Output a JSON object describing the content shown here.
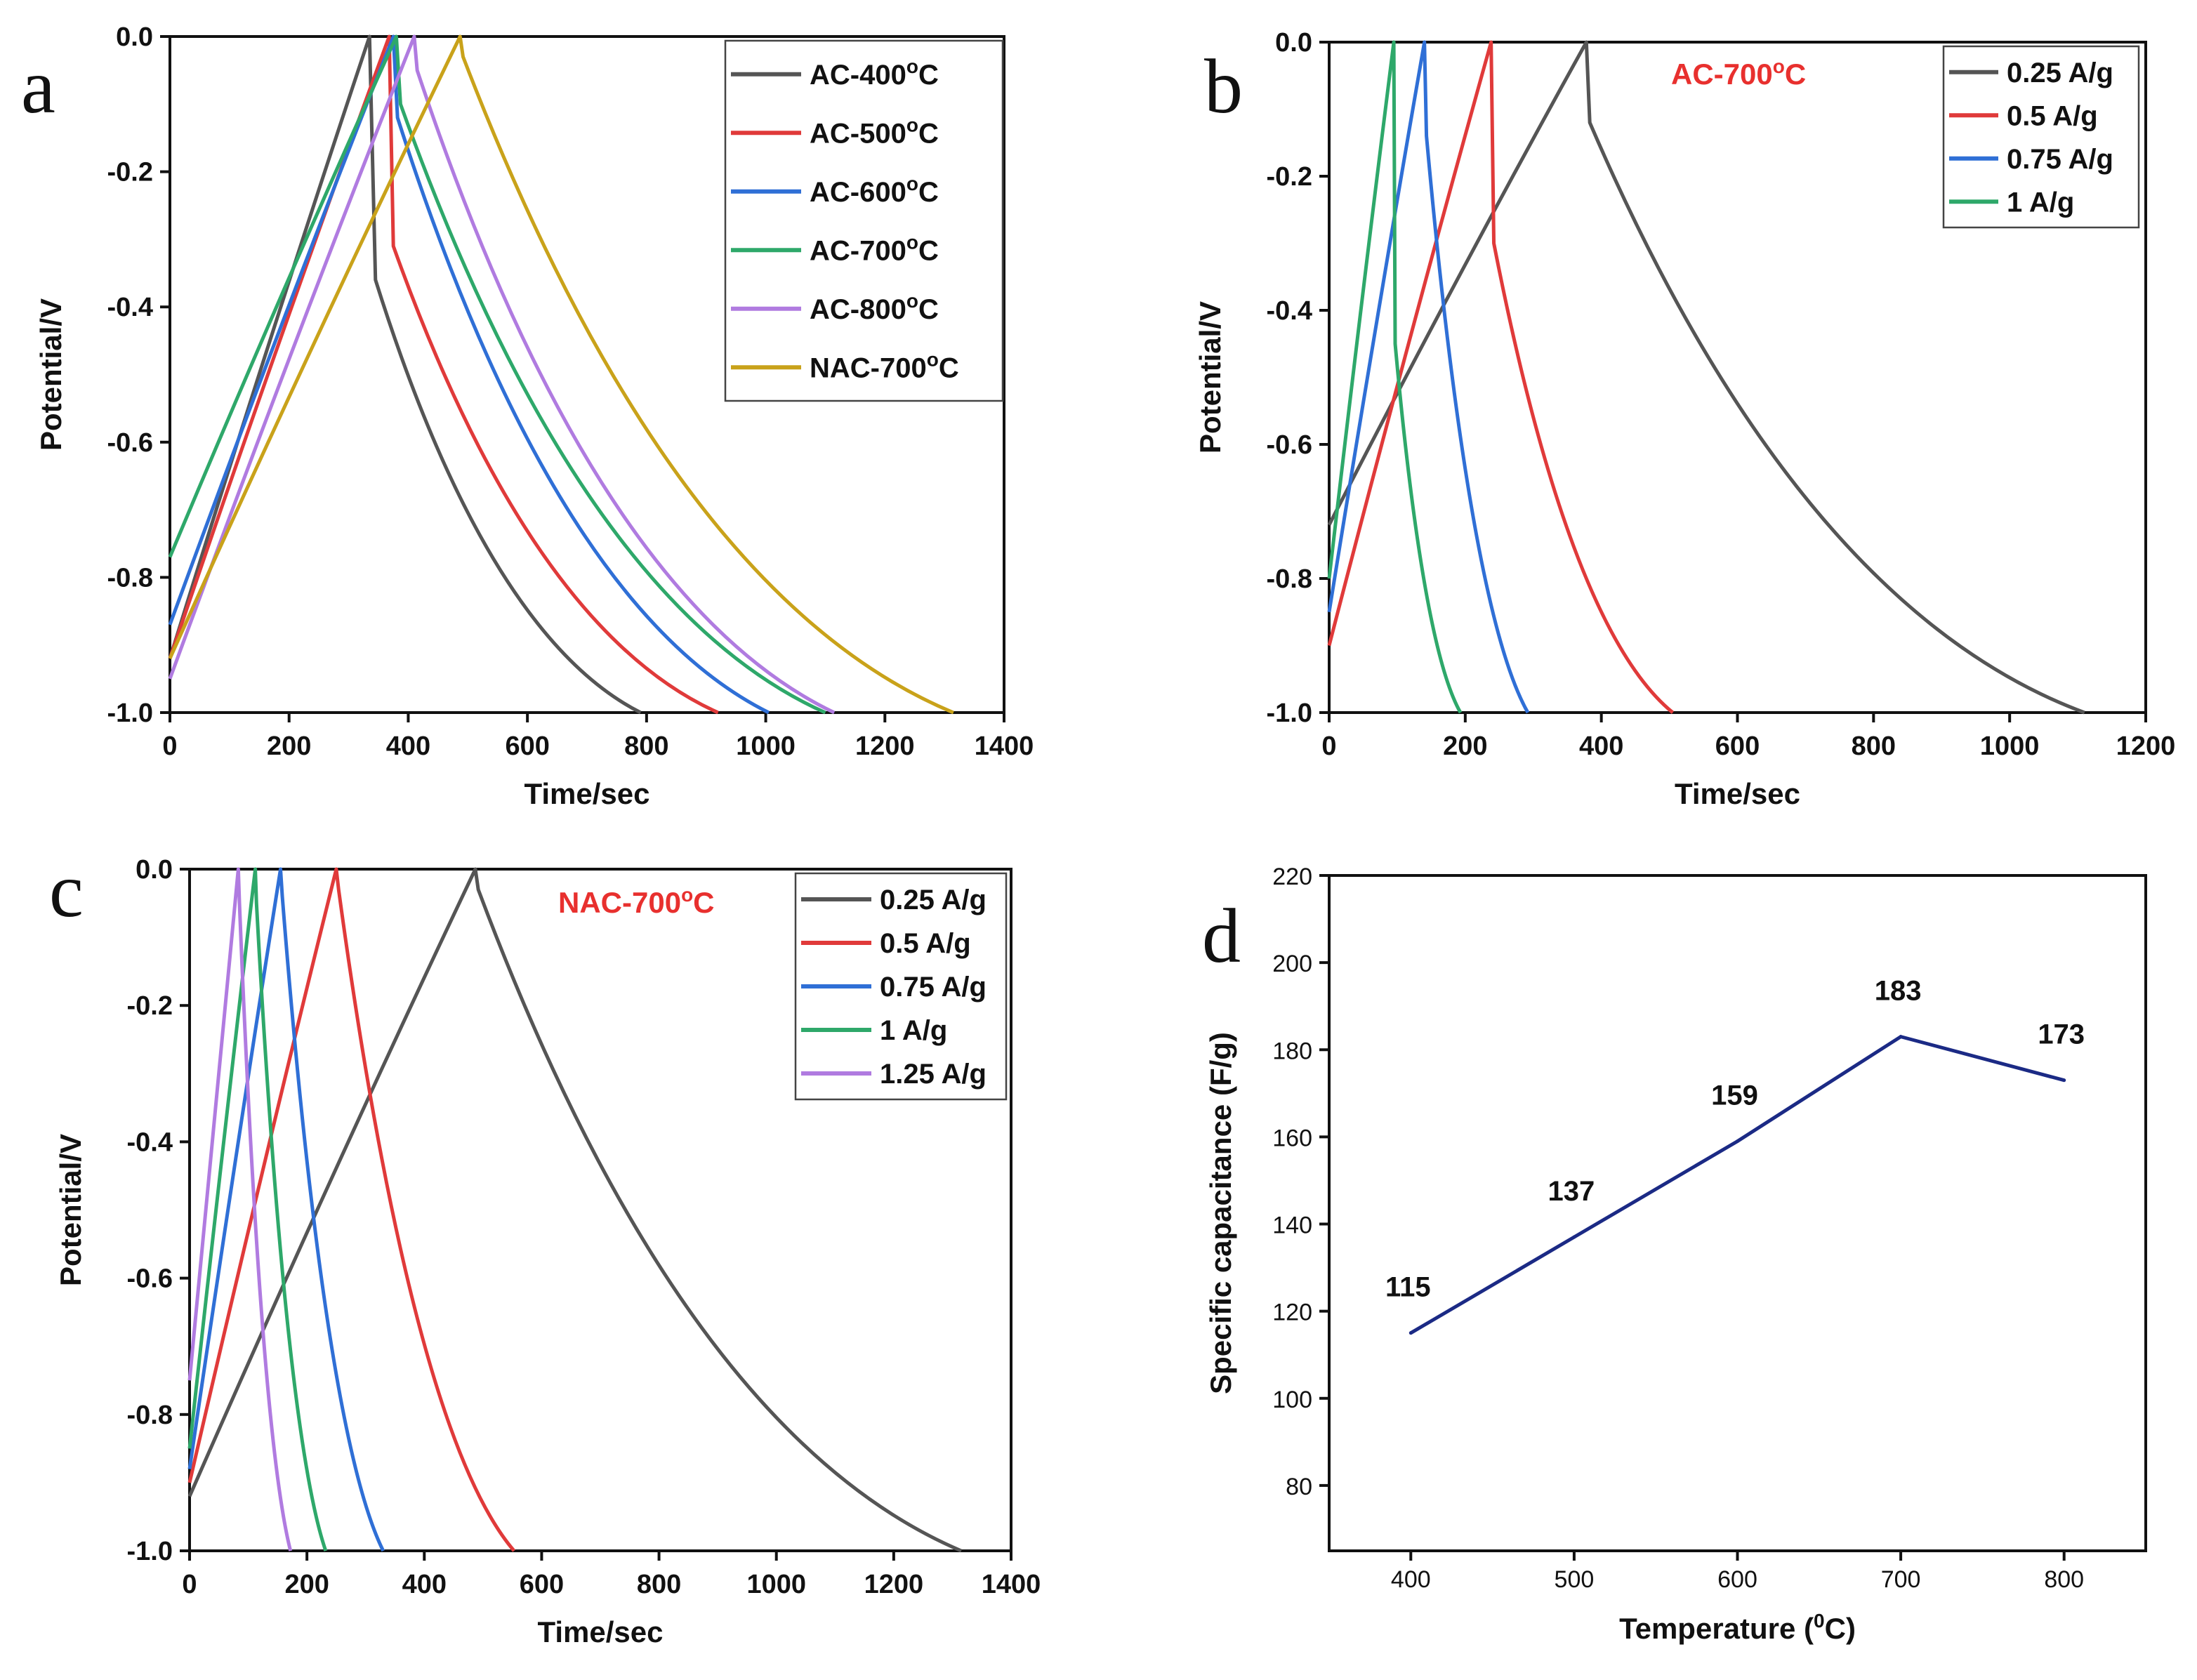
{
  "chart_data": [
    {
      "panel": "a",
      "type": "line",
      "xlabel": "Time/sec",
      "ylabel": "Potential/V",
      "xlim": [
        0,
        1400
      ],
      "ylim": [
        -1.0,
        0.0
      ],
      "xticks": [
        0,
        200,
        400,
        600,
        800,
        1000,
        1200,
        1400
      ],
      "yticks": [
        0.0,
        -0.2,
        -0.4,
        -0.6,
        -0.8,
        -1.0
      ],
      "legend_position": "top-right",
      "series": [
        {
          "name": "AC-400",
          "suffix": "C",
          "color": "#555555",
          "start": [
            0,
            -0.92
          ],
          "peak": [
            335,
            0.0
          ],
          "drop": [
            345,
            -0.36
          ],
          "end": [
            790,
            -1.0
          ]
        },
        {
          "name": "AC-500",
          "suffix": "C",
          "color": "#e03a3a",
          "start": [
            0,
            -0.92
          ],
          "peak": [
            368,
            0.0
          ],
          "drop": [
            375,
            -0.31
          ],
          "end": [
            920,
            -1.0
          ]
        },
        {
          "name": "AC-600",
          "suffix": "C",
          "color": "#2f6fd6",
          "start": [
            0,
            -0.87
          ],
          "peak": [
            375,
            0.0
          ],
          "drop": [
            382,
            -0.12
          ],
          "end": [
            1005,
            -1.0
          ]
        },
        {
          "name": "AC-700",
          "suffix": "C",
          "color": "#2ea86a",
          "start": [
            0,
            -0.77
          ],
          "peak": [
            380,
            0.0
          ],
          "drop": [
            387,
            -0.1
          ],
          "end": [
            1100,
            -1.0
          ]
        },
        {
          "name": "AC-800",
          "suffix": "C",
          "color": "#b07be0",
          "start": [
            0,
            -0.95
          ],
          "peak": [
            410,
            0.0
          ],
          "drop": [
            415,
            -0.05
          ],
          "end": [
            1115,
            -1.0
          ]
        },
        {
          "name": "NAC-700",
          "suffix": "C",
          "color": "#c9a21a",
          "start": [
            0,
            -0.92
          ],
          "peak": [
            487,
            0.0
          ],
          "drop": [
            492,
            -0.03
          ],
          "end": [
            1315,
            -1.0
          ]
        }
      ]
    },
    {
      "panel": "b",
      "type": "line",
      "annotation": "AC-700",
      "annotation_suffix": "C",
      "xlabel": "Time/sec",
      "ylabel": "Potential/V",
      "xlim": [
        0,
        1200
      ],
      "ylim": [
        -1.0,
        0.0
      ],
      "xticks": [
        0,
        200,
        400,
        600,
        800,
        1000,
        1200
      ],
      "yticks": [
        0.0,
        -0.2,
        -0.4,
        -0.6,
        -0.8,
        -1.0
      ],
      "legend_position": "top-right",
      "series": [
        {
          "name": "0.25 A/g",
          "color": "#555555",
          "start": [
            0,
            -0.72
          ],
          "peak": [
            378,
            0.0
          ],
          "drop": [
            383,
            -0.12
          ],
          "end": [
            1110,
            -1.0
          ]
        },
        {
          "name": "0.5 A/g",
          "color": "#e03a3a",
          "start": [
            0,
            -0.9
          ],
          "peak": [
            238,
            0.0
          ],
          "drop": [
            242,
            -0.3
          ],
          "end": [
            505,
            -1.0
          ]
        },
        {
          "name": "0.75 A/g",
          "color": "#2f6fd6",
          "start": [
            0,
            -0.85
          ],
          "peak": [
            140,
            0.0
          ],
          "drop": [
            143,
            -0.14
          ],
          "end": [
            292,
            -1.0
          ]
        },
        {
          "name": "1 A/g",
          "color": "#2ea86a",
          "start": [
            0,
            -0.8
          ],
          "peak": [
            95,
            0.0
          ],
          "drop": [
            97,
            -0.45
          ],
          "end": [
            193,
            -1.0
          ]
        }
      ]
    },
    {
      "panel": "c",
      "type": "line",
      "annotation": "NAC-700",
      "annotation_suffix": "C",
      "xlabel": "Time/sec",
      "ylabel": "Potential/V",
      "xlim": [
        0,
        1400
      ],
      "ylim": [
        -1.0,
        0.0
      ],
      "xticks": [
        0,
        200,
        400,
        600,
        800,
        1000,
        1200,
        1400
      ],
      "yticks": [
        0.0,
        -0.2,
        -0.4,
        -0.6,
        -0.8,
        -1.0
      ],
      "legend_position": "top-right",
      "series": [
        {
          "name": "0.25 A/g",
          "color": "#555555",
          "start": [
            0,
            -0.92
          ],
          "peak": [
            487,
            0.0
          ],
          "drop": [
            492,
            -0.03
          ],
          "end": [
            1315,
            -1.0
          ]
        },
        {
          "name": "0.5 A/g",
          "color": "#e03a3a",
          "start": [
            0,
            -0.9
          ],
          "peak": [
            250,
            0.0
          ],
          "drop": [
            254,
            -0.03
          ],
          "end": [
            553,
            -1.0
          ]
        },
        {
          "name": "0.75 A/g",
          "color": "#2f6fd6",
          "start": [
            0,
            -0.88
          ],
          "peak": [
            155,
            0.0
          ],
          "drop": [
            158,
            -0.04
          ],
          "end": [
            330,
            -1.0
          ]
        },
        {
          "name": "1 A/g",
          "color": "#2ea86a",
          "start": [
            0,
            -0.85
          ],
          "peak": [
            112,
            0.0
          ],
          "drop": [
            114,
            -0.05
          ],
          "end": [
            232,
            -1.0
          ]
        },
        {
          "name": "1.25 A/g",
          "color": "#b07be0",
          "start": [
            0,
            -0.75
          ],
          "peak": [
            83,
            0.0
          ],
          "drop": [
            85,
            -0.05
          ],
          "end": [
            172,
            -1.0
          ]
        }
      ]
    },
    {
      "panel": "d",
      "type": "line",
      "xlabel": "Temperature (",
      "xlabel_unit": "C)",
      "xlabel_sup": "0",
      "ylabel": "Specific capacitance (F/g)",
      "xlim": [
        350,
        850
      ],
      "ylim": [
        65,
        220
      ],
      "xticks": [
        400,
        500,
        600,
        700,
        800
      ],
      "yticks": [
        80,
        100,
        120,
        140,
        160,
        180,
        200,
        220
      ],
      "series": [
        {
          "name": "Specific capacitance",
          "color": "#1b2a85",
          "x": [
            400,
            500,
            600,
            700,
            800
          ],
          "y": [
            115,
            137,
            159,
            183,
            173
          ],
          "labels": [
            "115",
            "137",
            "159",
            "183",
            "173"
          ]
        }
      ]
    }
  ],
  "panel_letters": [
    "a",
    "b",
    "c",
    "d"
  ],
  "degree_marker": "o"
}
